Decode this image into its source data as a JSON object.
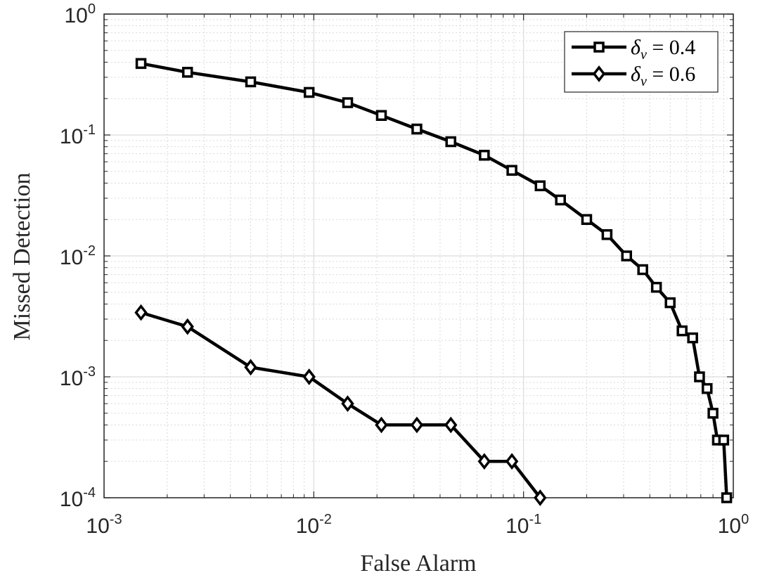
{
  "chart_data": {
    "type": "line",
    "xscale": "log",
    "yscale": "log",
    "xlim": [
      0.001,
      1
    ],
    "ylim": [
      0.0001,
      1
    ],
    "xlabel": "False Alarm",
    "ylabel": "Missed Detection",
    "grid": true,
    "minor_grid": true,
    "legend_position": "top-right",
    "xticks": [
      {
        "value": 0.001,
        "base": "10",
        "exp": "-3"
      },
      {
        "value": 0.01,
        "base": "10",
        "exp": "-2"
      },
      {
        "value": 0.1,
        "base": "10",
        "exp": "-1"
      },
      {
        "value": 1,
        "base": "10",
        "exp": "0"
      }
    ],
    "yticks": [
      {
        "value": 1,
        "base": "10",
        "exp": "0"
      },
      {
        "value": 0.1,
        "base": "10",
        "exp": "-1"
      },
      {
        "value": 0.01,
        "base": "10",
        "exp": "-2"
      },
      {
        "value": 0.001,
        "base": "10",
        "exp": "-3"
      },
      {
        "value": 0.0001,
        "base": "10",
        "exp": "-4"
      }
    ],
    "series": [
      {
        "name": "δv = 0.4",
        "legend_main": "δ",
        "legend_sub": "v",
        "legend_rest": " = 0.4",
        "marker": "square",
        "color": "#000000",
        "x": [
          0.0015,
          0.0025,
          0.005,
          0.0095,
          0.0145,
          0.021,
          0.031,
          0.045,
          0.065,
          0.088,
          0.12,
          0.15,
          0.2,
          0.25,
          0.31,
          0.37,
          0.43,
          0.5,
          0.57,
          0.64,
          0.69,
          0.75,
          0.8,
          0.84,
          0.9,
          0.93
        ],
        "y": [
          0.39,
          0.33,
          0.275,
          0.225,
          0.185,
          0.145,
          0.112,
          0.088,
          0.068,
          0.051,
          0.038,
          0.029,
          0.02,
          0.015,
          0.01,
          0.0077,
          0.0055,
          0.0041,
          0.0024,
          0.0021,
          0.001,
          0.0008,
          0.0005,
          0.0003,
          0.0003,
          0.0001
        ]
      },
      {
        "name": "δv = 0.6",
        "legend_main": "δ",
        "legend_sub": "v",
        "legend_rest": " = 0.6",
        "marker": "diamond",
        "color": "#000000",
        "x": [
          0.0015,
          0.0025,
          0.005,
          0.0095,
          0.0145,
          0.021,
          0.031,
          0.045,
          0.065,
          0.088,
          0.12
        ],
        "y": [
          0.0034,
          0.0026,
          0.0012,
          0.001,
          0.0006,
          0.0004,
          0.0004,
          0.0004,
          0.0002,
          0.0002,
          0.0001
        ]
      }
    ]
  }
}
